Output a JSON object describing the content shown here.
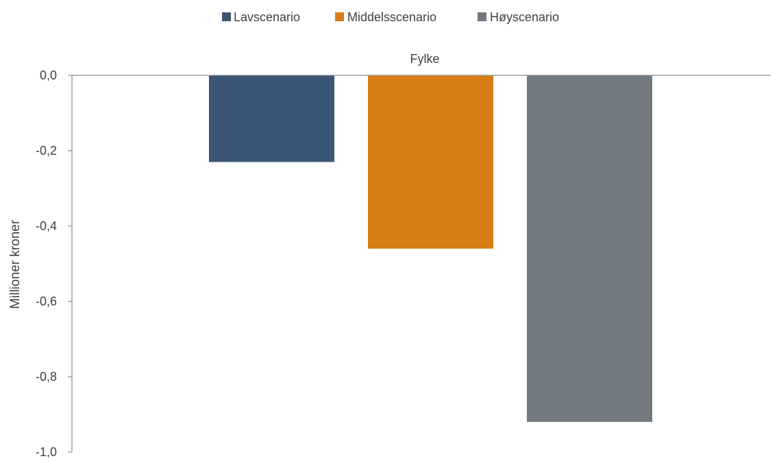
{
  "chart_data": {
    "type": "bar",
    "title": "",
    "xlabel": "",
    "ylabel": "Millioner kroner",
    "categories": [
      "Fylke"
    ],
    "series": [
      {
        "name": "Lavscenario",
        "color": "#3a5674",
        "values": [
          -0.23
        ]
      },
      {
        "name": "Middelsscenario",
        "color": "#d77e17",
        "values": [
          -0.46
        ]
      },
      {
        "name": "Høyscenario",
        "color": "#737a81",
        "values": [
          -0.92
        ]
      }
    ],
    "ylim": [
      -1.0,
      0.0
    ],
    "yticks": [
      "0,0",
      "-0,2",
      "-0,4",
      "-0,6",
      "-0,8",
      "-1,0"
    ],
    "grid": false,
    "legend_position": "top-center",
    "category_axis_position": "top"
  }
}
